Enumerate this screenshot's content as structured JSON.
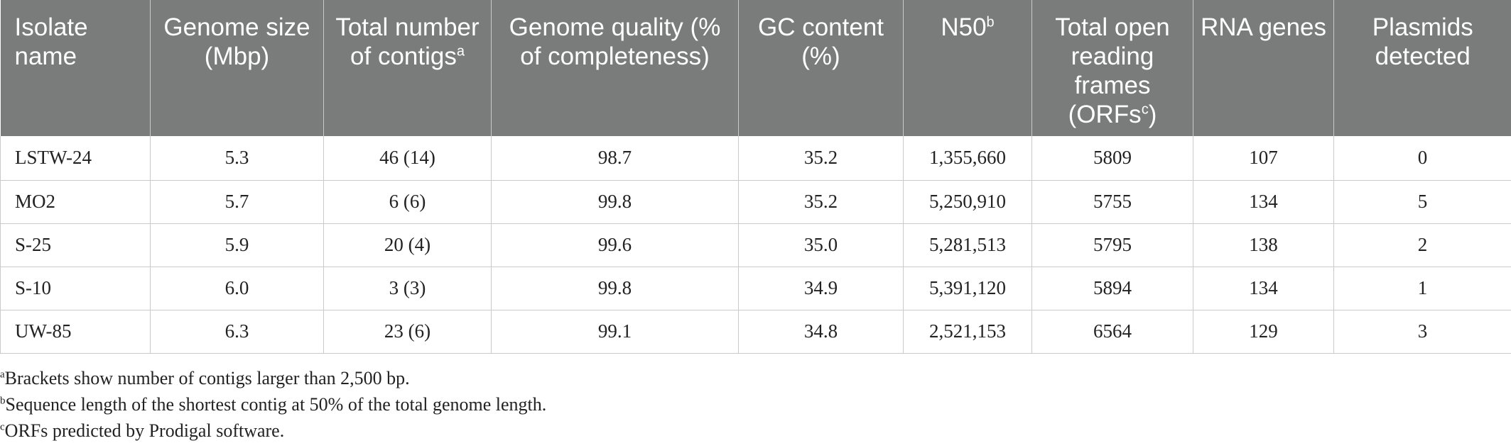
{
  "header": [
    {
      "text": "Isolate name",
      "sup": ""
    },
    {
      "text": "Genome size (Mbp)",
      "sup": ""
    },
    {
      "text": "Total number of contigs",
      "sup": "a"
    },
    {
      "text": "Genome quality (% of completeness)",
      "sup": ""
    },
    {
      "text": "GC content (%)",
      "sup": ""
    },
    {
      "text": "N50",
      "sup": "b"
    },
    {
      "text": "Total open reading frames (ORFs",
      "sup": "c",
      "tail": ")"
    },
    {
      "text": "RNA genes",
      "sup": ""
    },
    {
      "text": "Plasmids detected",
      "sup": ""
    }
  ],
  "rows": [
    [
      "LSTW-24",
      "5.3",
      "46 (14)",
      "98.7",
      "35.2",
      "1,355,660",
      "5809",
      "107",
      "0"
    ],
    [
      "MO2",
      "5.7",
      "6 (6)",
      "99.8",
      "35.2",
      "5,250,910",
      "5755",
      "134",
      "5"
    ],
    [
      "S-25",
      "5.9",
      "20 (4)",
      "99.6",
      "35.0",
      "5,281,513",
      "5795",
      "138",
      "2"
    ],
    [
      "S-10",
      "6.0",
      "3 (3)",
      "99.8",
      "34.9",
      "5,391,120",
      "5894",
      "134",
      "1"
    ],
    [
      "UW-85",
      "6.3",
      "23 (6)",
      "99.1",
      "34.8",
      "2,521,153",
      "6564",
      "129",
      "3"
    ]
  ],
  "footnotes": [
    {
      "mark": "a",
      "text": "Brackets show number of contigs larger than 2,500 bp."
    },
    {
      "mark": "b",
      "text": "Sequence length of the shortest contig at 50% of the total genome length."
    },
    {
      "mark": "c",
      "text": "ORFs predicted by Prodigal software."
    }
  ],
  "colors": {
    "header_bg": "#7a7c7b",
    "header_text": "#ffffff",
    "grid": "#c9cac9"
  }
}
